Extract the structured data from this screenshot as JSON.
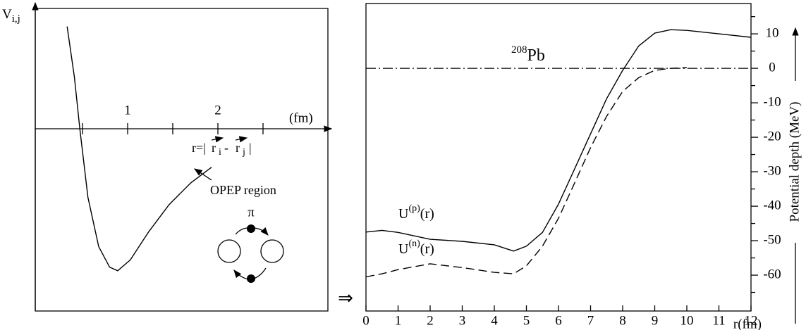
{
  "chart_data": [
    {
      "type": "line",
      "y_label": [
        "V",
        "i,j"
      ],
      "x_label": "(fm)",
      "xlim": [
        0,
        3.25
      ],
      "ylim": [
        -1.5,
        1.0
      ],
      "xticks": [
        1,
        2
      ],
      "minor_xticks": [
        0.5,
        1.5,
        2.5
      ],
      "x": [
        0.33,
        0.41,
        0.47,
        0.56,
        0.68,
        0.8,
        0.89,
        1.03,
        1.23,
        1.46,
        1.7,
        1.93
      ],
      "series": [
        {
          "color": "#000000",
          "values": [
            0.85,
            0.43,
            0,
            -0.57,
            -0.98,
            -1.15,
            -1.18,
            -1.09,
            -0.86,
            -0.63,
            -0.45,
            -0.32
          ]
        }
      ],
      "annotations": {
        "r_def": [
          "r=|",
          "r",
          "i",
          "-",
          "r",
          "j",
          "|"
        ],
        "region": "OPEP region",
        "meson": "π"
      },
      "connector": "⇒"
    },
    {
      "type": "line",
      "title": [
        "208",
        "Pb"
      ],
      "x_label": "r(fm)",
      "y_label": "Potential depth (MeV)",
      "xlim": [
        0,
        12
      ],
      "ylim": [
        -70.4,
        18.8
      ],
      "xticks": [
        0,
        1,
        2,
        3,
        4,
        5,
        6,
        7,
        8,
        9,
        10,
        11,
        12
      ],
      "yticks": [
        10,
        0,
        -10,
        -20,
        -30,
        -40,
        -50,
        -60
      ],
      "minor_yticks": [
        15,
        5,
        -5,
        -15,
        -25,
        -35,
        -45,
        -55,
        -65
      ],
      "reference_line": 0,
      "x": [
        0,
        0.5,
        1,
        2,
        3,
        4,
        4.6,
        5,
        5.5,
        6,
        6.5,
        7,
        7.5,
        8,
        8.5,
        9,
        9.5,
        10,
        11,
        12
      ],
      "series": [
        {
          "name": [
            "U",
            "(p)",
            "(r)"
          ],
          "color": "#000000",
          "dash": "solid",
          "values": [
            -47.5,
            -47,
            -47.6,
            -49.6,
            -50.2,
            -51.2,
            -53,
            -51.6,
            -47.6,
            -39.4,
            -29.2,
            -19,
            -8.8,
            -0.6,
            6.5,
            10.2,
            11.2,
            11,
            10,
            9
          ]
        },
        {
          "name": [
            "U",
            "(n)",
            "(r)"
          ],
          "color": "#000000",
          "dash": "dashed",
          "values": [
            -60.5,
            -59.6,
            -58.4,
            -56.7,
            -57.8,
            -59.2,
            -59.6,
            -57.3,
            -51.6,
            -43.5,
            -33.3,
            -23,
            -13.9,
            -6.7,
            -2.7,
            -0.6,
            0,
            0.2,
            null,
            null
          ]
        }
      ]
    }
  ]
}
